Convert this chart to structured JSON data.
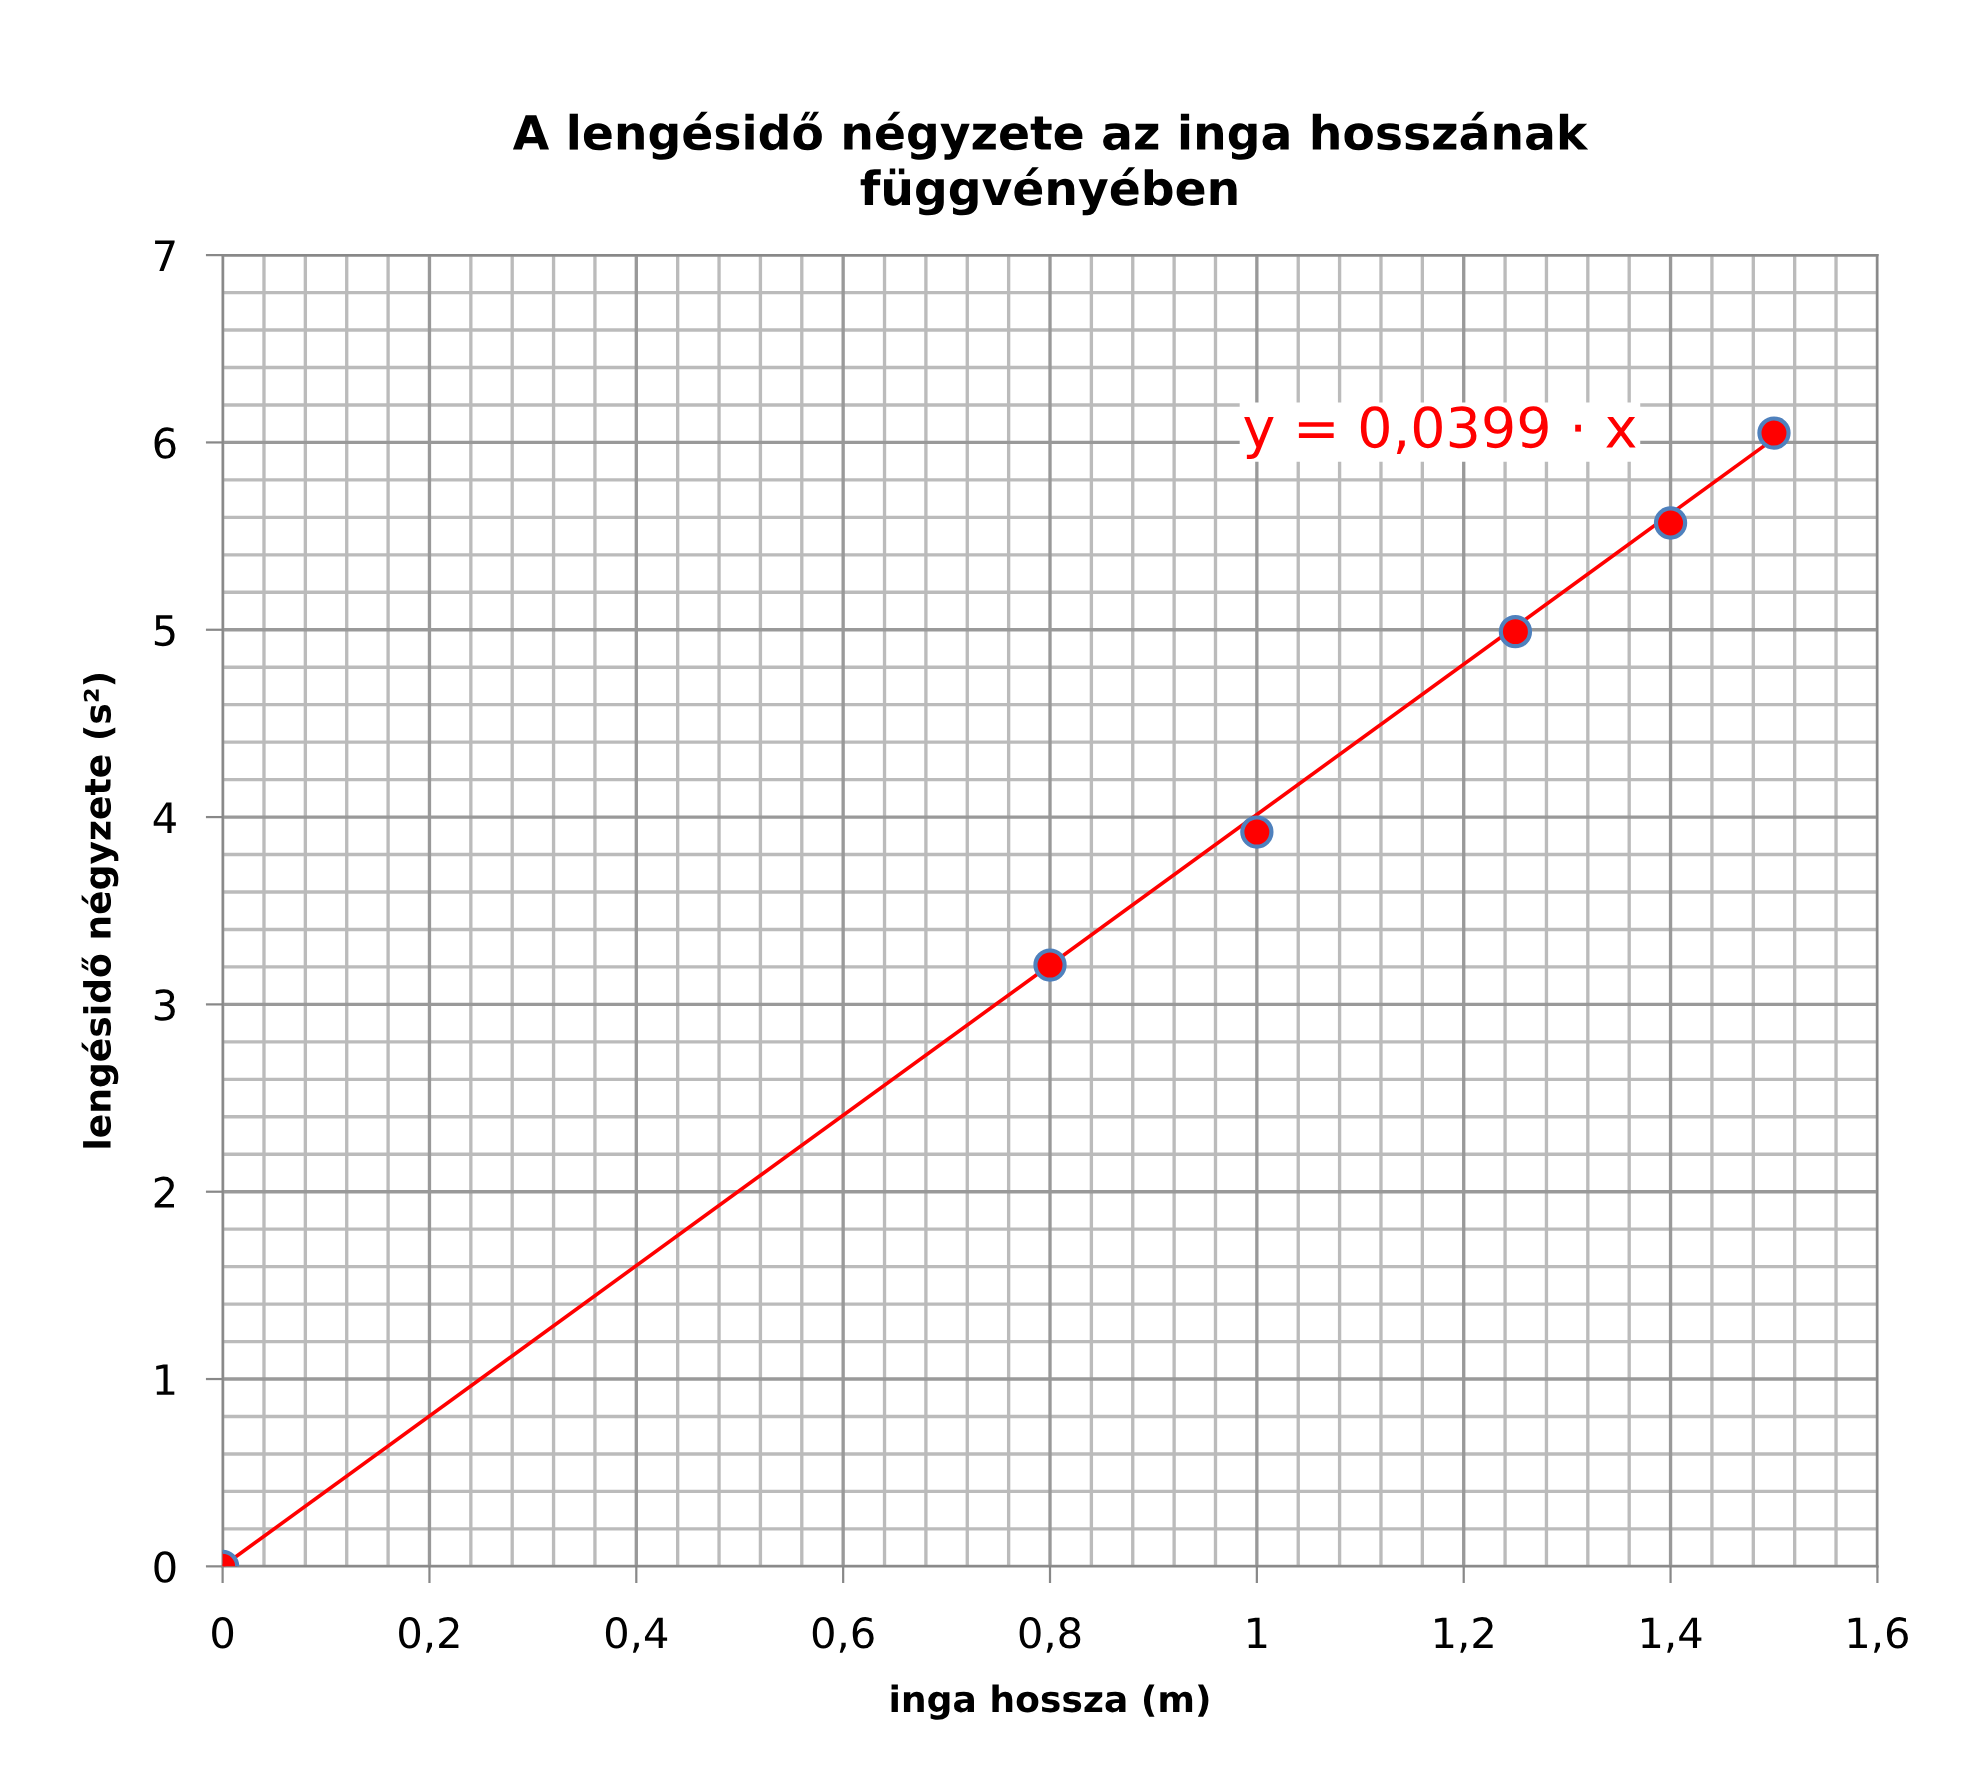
{
  "chart_data": {
    "type": "scatter",
    "title": "A lengésidő négyzete az inga hosszának\nfüggvényében",
    "xlabel": "inga hossza (m)",
    "ylabel": "lengésidő négyzete (s²)",
    "annotations": [
      "y = 0,0399 · x"
    ],
    "series": [
      {
        "color": "#ff0000",
        "x": [
          0,
          0.8,
          1,
          1.25,
          1.4,
          1.5
        ],
        "values": [
          0,
          3.21,
          3.92,
          4.99,
          5.57,
          6.05
        ],
        "marker": "circle"
      },
      {
        "type": "line",
        "color": "#ff0000",
        "x": [
          0,
          1.5
        ],
        "values": [
          0,
          6.02
        ],
        "marker": "none",
        "line_style": "solid"
      }
    ],
    "xlim": [
      0,
      1.6
    ],
    "ylim": [
      0,
      7
    ],
    "xticks": [
      0,
      {
        "value": 0.2,
        "label": "0,2"
      },
      {
        "value": 0.4,
        "label": "0,4"
      },
      {
        "value": 0.6,
        "label": "0,6"
      },
      {
        "value": 0.8,
        "label": "0,8"
      },
      1,
      {
        "value": 1.2,
        "label": "1,2"
      },
      {
        "value": 1.4,
        "label": "1,4"
      },
      {
        "value": 1.6,
        "label": "1,6"
      }
    ],
    "yticks": [
      0,
      1,
      2,
      3,
      4,
      5,
      6,
      7
    ],
    "grid": true,
    "legend": false
  }
}
